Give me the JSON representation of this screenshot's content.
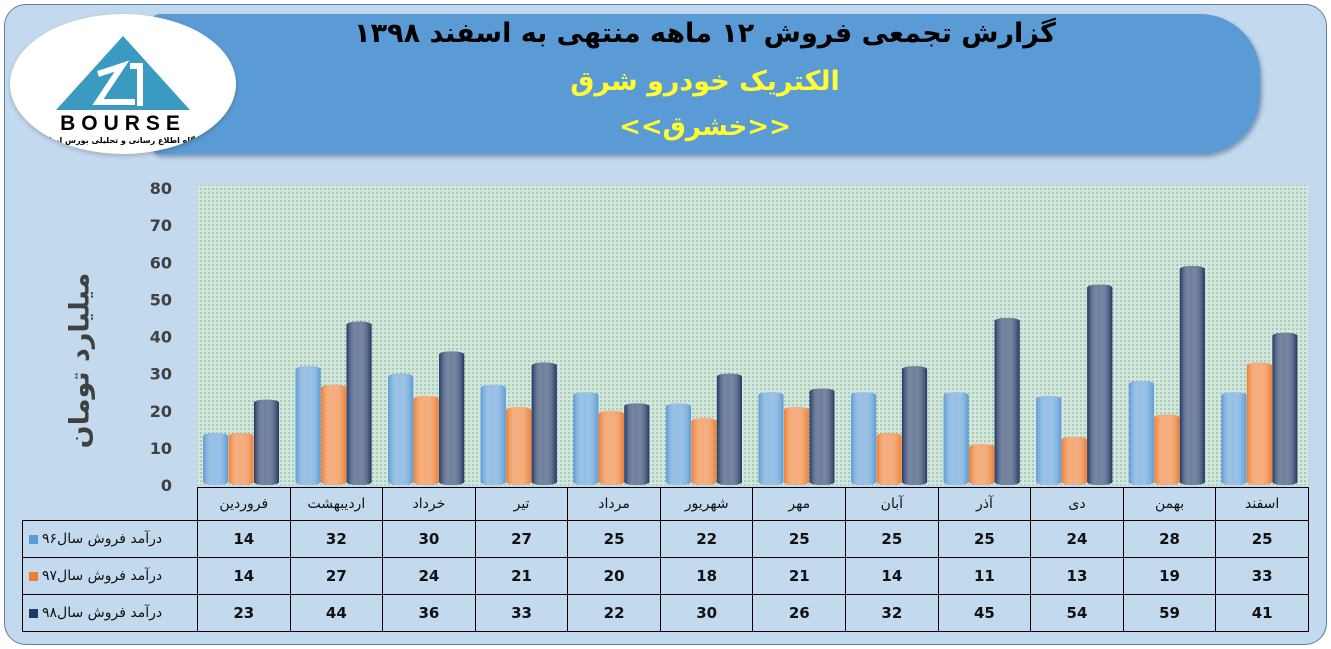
{
  "header": {
    "title": "گزارش تجمعی فروش  ۱۲ ماهه منتهی به اسفند ۱۳۹۸",
    "company": "الکتریک خودرو شرق",
    "symbol": "<<خشرق>>"
  },
  "logo": {
    "text": "BOURSE",
    "subtitle": "پایگاه اطلاع رسانی و تحلیلی بورس ایران"
  },
  "chart_data": {
    "type": "bar",
    "title": "گزارش تجمعی فروش  ۱۲ ماهه منتهی به اسفند ۱۳۹۸",
    "ylabel": "میلیارد تومان",
    "ylim": [
      0,
      80
    ],
    "yticks": [
      0,
      10,
      20,
      30,
      40,
      50,
      60,
      70,
      80
    ],
    "grid": false,
    "legend": "data-table",
    "categories": [
      "فروردین",
      "اردیبهشت",
      "خرداد",
      "تیر",
      "مرداد",
      "شهریور",
      "مهر",
      "آبان",
      "آذر",
      "دی",
      "بهمن",
      "اسفند"
    ],
    "series": [
      {
        "name": "درآمد فروش سال۹۶",
        "color": "#5b9bd5",
        "values": [
          14,
          32,
          30,
          27,
          25,
          22,
          25,
          25,
          25,
          24,
          28,
          25
        ]
      },
      {
        "name": "درآمد فروش سال۹۷",
        "color": "#ed7d31",
        "values": [
          14,
          27,
          24,
          21,
          20,
          18,
          21,
          14,
          11,
          13,
          19,
          33
        ]
      },
      {
        "name": "درآمد فروش سال۹۸",
        "color": "#203864",
        "values": [
          23,
          44,
          36,
          33,
          22,
          30,
          26,
          32,
          45,
          54,
          59,
          41
        ]
      }
    ]
  }
}
